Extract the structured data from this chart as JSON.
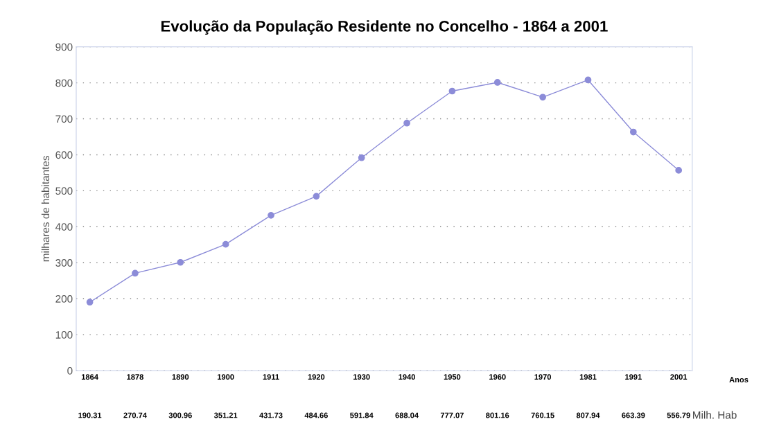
{
  "chart_data": {
    "type": "line",
    "title": "Evolução da População Residente no Concelho - 1864 a 2001",
    "ylabel": "milhares de habitantes",
    "categories": [
      "1864",
      "1878",
      "1890",
      "1900",
      "1911",
      "1920",
      "1930",
      "1940",
      "1950",
      "1960",
      "1970",
      "1981",
      "1991",
      "2001"
    ],
    "series": [
      {
        "color": "#8c8cd8",
        "values": [
          190.31,
          270.74,
          300.96,
          351.21,
          431.73,
          484.66,
          591.84,
          688.04,
          777.07,
          801.16,
          760.15,
          807.94,
          663.39,
          556.79
        ]
      }
    ],
    "ylim": [
      0,
      900
    ],
    "yticks": [
      0,
      100,
      200,
      300,
      400,
      500,
      600,
      700,
      800,
      900
    ],
    "grid": "y",
    "marker": "circle",
    "line_style": "solid",
    "data_labels": true,
    "annotations": [
      "Anos",
      "Milh. Hab"
    ]
  }
}
